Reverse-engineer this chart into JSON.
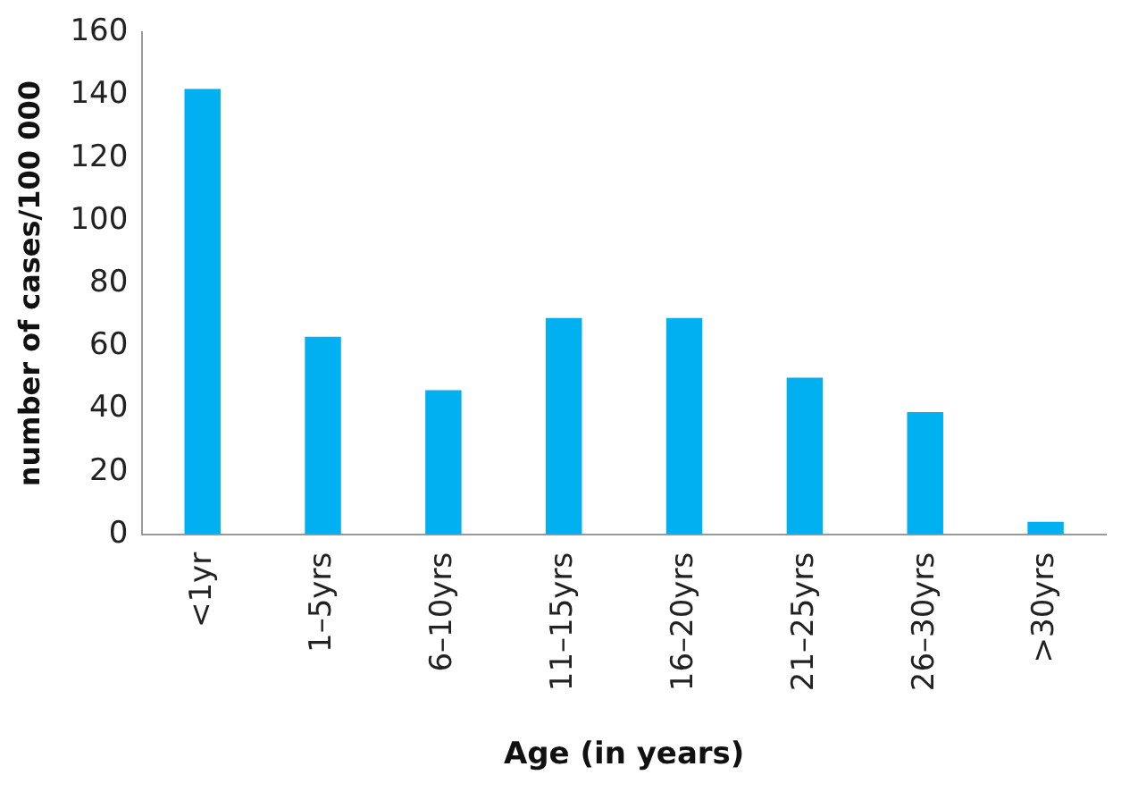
{
  "chart_data": {
    "type": "bar",
    "xlabel": "Age (in years)",
    "ylabel": "number of cases/100 000",
    "categories": [
      "<1yr",
      "1–5yrs",
      "6–10yrs",
      "11–15yrs",
      "16–20yrs",
      "21–25yrs",
      "26–30yrs",
      ">30yrs"
    ],
    "values": [
      142,
      63,
      46,
      69,
      69,
      50,
      39,
      4
    ],
    "color": "#00b0f0",
    "ylim": [
      0,
      160
    ],
    "yticks": [
      0,
      20,
      40,
      60,
      80,
      100,
      120,
      140,
      160
    ],
    "grid": false,
    "legend": false
  }
}
